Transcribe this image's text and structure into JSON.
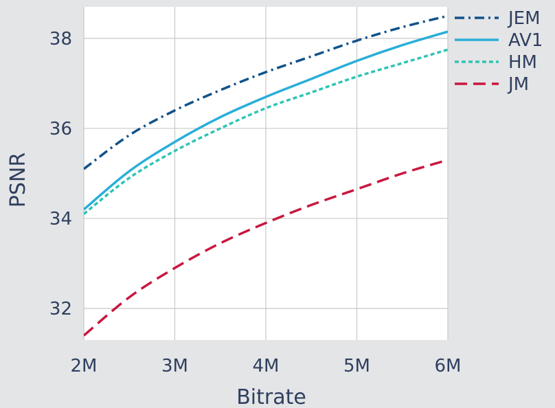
{
  "chart_data": {
    "type": "line",
    "xlabel": "Bitrate",
    "ylabel": "PSNR",
    "xlim": [
      2,
      6
    ],
    "ylim": [
      31.3,
      38.7
    ],
    "x_ticks": [
      {
        "value": 2,
        "label": "2M"
      },
      {
        "value": 3,
        "label": "3M"
      },
      {
        "value": 4,
        "label": "4M"
      },
      {
        "value": 5,
        "label": "5M"
      },
      {
        "value": 6,
        "label": "6M"
      }
    ],
    "y_ticks": [
      {
        "value": 32,
        "label": "32"
      },
      {
        "value": 34,
        "label": "34"
      },
      {
        "value": 36,
        "label": "36"
      },
      {
        "value": 38,
        "label": "38"
      }
    ],
    "grid": true,
    "legend_position": "right",
    "x": [
      2,
      2.5,
      3,
      3.5,
      4,
      4.5,
      5,
      5.5,
      6
    ],
    "series": [
      {
        "name": "JEM",
        "color": "#10528a",
        "dash": "dash-dot",
        "values": [
          35.1,
          35.85,
          36.4,
          36.85,
          37.25,
          37.6,
          37.95,
          38.25,
          38.5
        ]
      },
      {
        "name": "AV1",
        "color": "#2aaed8",
        "dash": "solid",
        "values": [
          34.2,
          35.05,
          35.7,
          36.25,
          36.7,
          37.1,
          37.5,
          37.85,
          38.15
        ]
      },
      {
        "name": "HM",
        "color": "#2ec4b4",
        "dash": "dotted",
        "values": [
          34.1,
          34.9,
          35.5,
          36.0,
          36.45,
          36.8,
          37.15,
          37.45,
          37.75
        ]
      },
      {
        "name": "JM",
        "color": "#c8173f",
        "dash": "dashed",
        "values": [
          31.4,
          32.25,
          32.9,
          33.45,
          33.9,
          34.3,
          34.65,
          35.0,
          35.3
        ]
      }
    ]
  }
}
